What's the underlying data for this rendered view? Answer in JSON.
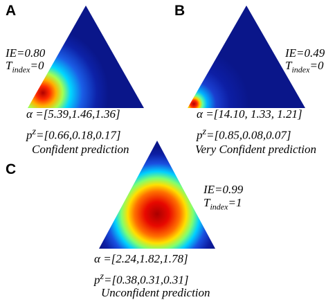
{
  "colors": {
    "background_low": "#0a1a8c",
    "mid_cyan": "#00c8ff",
    "mid_yellow": "#ffee00",
    "peak_red": "#cc0000"
  },
  "panels": [
    {
      "id": "A",
      "letter": "A",
      "ie_label": "IE=0.80",
      "tindex_prefix": "T",
      "tindex_sub": "index",
      "tindex_value": "=0",
      "alpha_symbol": "α",
      "alpha_value": " =[5.39,1.46,1.36]",
      "p_symbol": "p",
      "p_sup": "z",
      "p_value": "=[0.66,0.18,0.17]",
      "caption": "Confident prediction",
      "peak_barycentric": [
        0.66,
        0.18,
        0.17
      ],
      "spread": 0.22
    },
    {
      "id": "B",
      "letter": "B",
      "ie_label": "IE=0.49",
      "tindex_prefix": "T",
      "tindex_sub": "index",
      "tindex_value": "=0",
      "alpha_symbol": "α",
      "alpha_value": " =[14.10, 1.33, 1.21]",
      "p_symbol": "p",
      "p_sup": "z",
      "p_value": "=[0.85,0.08,0.07]",
      "caption": "Very Confident prediction",
      "peak_barycentric": [
        0.85,
        0.08,
        0.07
      ],
      "spread": 0.12
    },
    {
      "id": "C",
      "letter": "C",
      "ie_label": "IE=0.99",
      "tindex_prefix": "T",
      "tindex_sub": "index",
      "tindex_value": "=1",
      "alpha_symbol": "α",
      "alpha_value": " =[2.24,1.82,1.78]",
      "p_symbol": "p",
      "p_sup": "z",
      "p_value": "=[0.38,0.31,0.31]",
      "caption": "Unconfident prediction",
      "peak_barycentric": [
        0.38,
        0.31,
        0.31
      ],
      "spread": 0.55
    }
  ]
}
